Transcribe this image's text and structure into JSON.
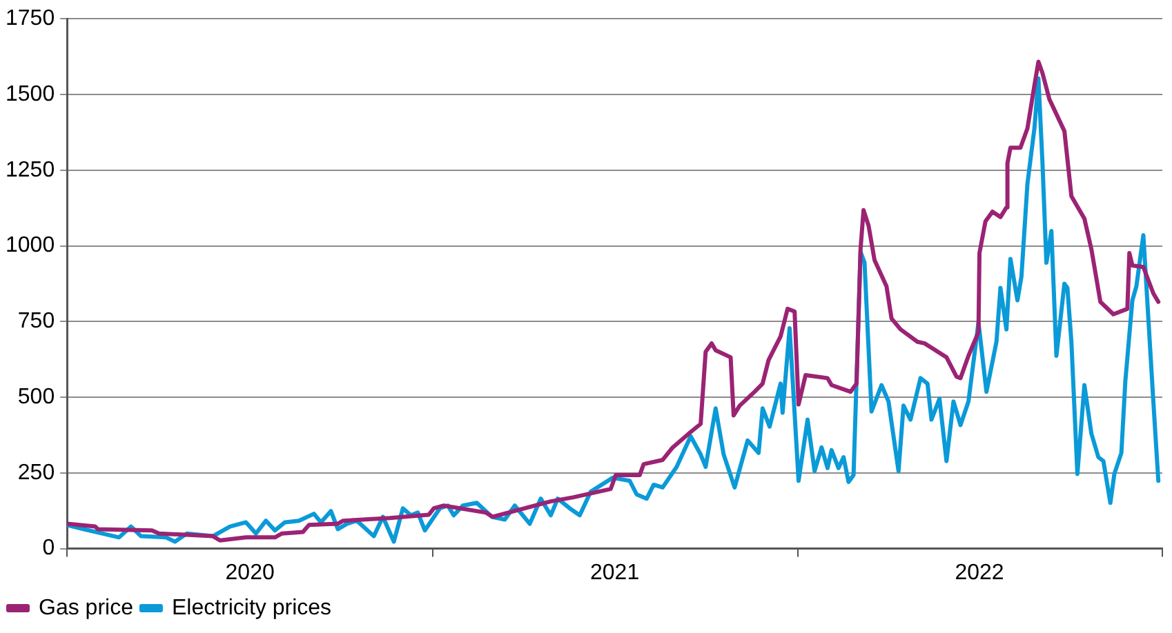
{
  "chart_data": {
    "type": "line",
    "xlim": [
      "2020-01-01",
      "2023-01-01"
    ],
    "xticks": [
      {
        "value": "2020-01-01",
        "label": null
      },
      {
        "value": "2020-07-02",
        "label": "2020"
      },
      {
        "value": "2021-01-01",
        "label": null
      },
      {
        "value": "2021-07-02",
        "label": "2021"
      },
      {
        "value": "2022-01-01",
        "label": null
      },
      {
        "value": "2022-07-02",
        "label": "2022"
      },
      {
        "value": "2023-01-01",
        "label": null
      }
    ],
    "ylim": [
      0,
      1750
    ],
    "yticks": [
      0,
      250,
      500,
      750,
      1000,
      1250,
      1500,
      1750
    ],
    "grid": "y",
    "legend": "bottom left",
    "marker": "none",
    "line_style": "solid",
    "series": [
      {
        "name": "Gas price",
        "color": "#9b2374",
        "x": [
          "2020-01-01",
          "2020-01-29",
          "2020-02-01",
          "2020-03-26",
          "2020-04-02",
          "2020-05-26",
          "2020-06-02",
          "2020-06-28",
          "2020-07-27",
          "2020-08-03",
          "2020-08-24",
          "2020-08-30",
          "2020-09-28",
          "2020-10-03",
          "2020-11-19",
          "2020-12-28",
          "2021-01-02",
          "2021-01-12",
          "2021-02-23",
          "2021-03-02",
          "2021-03-28",
          "2021-04-29",
          "2021-05-21",
          "2021-06-28",
          "2021-07-03",
          "2021-07-27",
          "2021-07-31",
          "2021-08-19",
          "2021-08-29",
          "2021-09-16",
          "2021-09-26",
          "2021-10-01",
          "2021-10-07",
          "2021-10-11",
          "2021-10-26",
          "2021-10-29",
          "2021-11-04",
          "2021-11-19",
          "2021-11-27",
          "2021-12-03",
          "2021-12-15",
          "2021-12-22",
          "2021-12-29",
          "2022-01-02",
          "2022-01-09",
          "2022-01-31",
          "2022-02-04",
          "2022-02-23",
          "2022-03-01",
          "2022-03-05",
          "2022-03-08",
          "2022-03-13",
          "2022-03-19",
          "2022-03-31",
          "2022-04-05",
          "2022-04-14",
          "2022-05-01",
          "2022-05-08",
          "2022-05-30",
          "2022-06-09",
          "2022-06-13",
          "2022-06-21",
          "2022-07-01",
          "2022-07-02",
          "2022-07-08",
          "2022-07-15",
          "2022-07-23",
          "2022-07-29",
          "2022-07-30",
          "2022-08-02",
          "2022-08-12",
          "2022-08-19",
          "2022-08-26",
          "2022-08-30",
          "2022-09-03",
          "2022-09-10",
          "2022-09-25",
          "2022-10-02",
          "2022-10-15",
          "2022-10-22",
          "2022-10-31",
          "2022-11-13",
          "2022-11-27",
          "2022-11-29",
          "2022-12-02",
          "2022-12-13",
          "2022-12-23",
          "2022-12-28"
        ],
        "values": [
          82,
          73,
          64,
          60,
          50,
          41,
          27,
          37,
          37,
          50,
          55,
          78,
          82,
          92,
          101,
          112,
          133,
          142,
          119,
          105,
          128,
          156,
          169,
          197,
          243,
          243,
          279,
          293,
          334,
          385,
          412,
          650,
          678,
          655,
          632,
          440,
          472,
          518,
          545,
          623,
          701,
          792,
          783,
          476,
          573,
          563,
          540,
          518,
          545,
          989,
          1118,
          1067,
          953,
          866,
          760,
          724,
          683,
          678,
          632,
          568,
          563,
          637,
          715,
          976,
          1081,
          1113,
          1095,
          1127,
          1273,
          1324,
          1324,
          1388,
          1530,
          1608,
          1571,
          1484,
          1379,
          1164,
          1090,
          989,
          815,
          774,
          792,
          976,
          935,
          930,
          843,
          815
        ]
      },
      {
        "name": "Electricity prices",
        "color": "#0b9ad8",
        "x": [
          "2020-01-01",
          "2020-01-18",
          "2020-02-05",
          "2020-02-22",
          "2020-03-05",
          "2020-03-15",
          "2020-04-09",
          "2020-04-18",
          "2020-04-30",
          "2020-05-26",
          "2020-06-12",
          "2020-06-28",
          "2020-07-08",
          "2020-07-18",
          "2020-07-27",
          "2020-08-06",
          "2020-08-20",
          "2020-09-04",
          "2020-09-11",
          "2020-09-21",
          "2020-09-28",
          "2020-10-07",
          "2020-10-17",
          "2020-11-03",
          "2020-11-12",
          "2020-11-23",
          "2020-12-02",
          "2020-12-10",
          "2020-12-17",
          "2020-12-24",
          "2021-01-08",
          "2021-01-16",
          "2021-01-22",
          "2021-01-31",
          "2021-02-14",
          "2021-03-01",
          "2021-03-14",
          "2021-03-24",
          "2021-04-08",
          "2021-04-19",
          "2021-04-29",
          "2021-05-06",
          "2021-05-18",
          "2021-05-28",
          "2021-06-08",
          "2021-06-30",
          "2021-07-17",
          "2021-07-24",
          "2021-08-03",
          "2021-08-10",
          "2021-08-19",
          "2021-09-02",
          "2021-09-16",
          "2021-09-26",
          "2021-10-01",
          "2021-10-11",
          "2021-10-19",
          "2021-10-30",
          "2021-11-12",
          "2021-11-23",
          "2021-11-27",
          "2021-12-04",
          "2021-12-15",
          "2021-12-17",
          "2021-12-24",
          "2022-01-02",
          "2022-01-11",
          "2022-01-18",
          "2022-01-25",
          "2022-01-31",
          "2022-02-04",
          "2022-02-11",
          "2022-02-16",
          "2022-02-21",
          "2022-02-26",
          "2022-03-05",
          "2022-03-09",
          "2022-03-16",
          "2022-03-26",
          "2022-04-02",
          "2022-04-12",
          "2022-04-17",
          "2022-04-24",
          "2022-05-04",
          "2022-05-11",
          "2022-05-15",
          "2022-05-23",
          "2022-05-30",
          "2022-06-06",
          "2022-06-13",
          "2022-06-21",
          "2022-07-01",
          "2022-07-09",
          "2022-07-19",
          "2022-07-23",
          "2022-07-29",
          "2022-08-02",
          "2022-08-09",
          "2022-08-13",
          "2022-08-19",
          "2022-08-26",
          "2022-08-30",
          "2022-09-03",
          "2022-09-07",
          "2022-09-12",
          "2022-09-17",
          "2022-09-25",
          "2022-09-28",
          "2022-10-02",
          "2022-10-08",
          "2022-10-15",
          "2022-10-22",
          "2022-10-29",
          "2022-11-03",
          "2022-11-10",
          "2022-11-14",
          "2022-11-21",
          "2022-11-25",
          "2022-12-02",
          "2022-12-06",
          "2022-12-13",
          "2022-12-23",
          "2022-12-28"
        ],
        "values": [
          78,
          64,
          50,
          37,
          73,
          41,
          37,
          23,
          50,
          41,
          73,
          87,
          50,
          92,
          60,
          87,
          92,
          115,
          87,
          124,
          64,
          82,
          92,
          41,
          105,
          23,
          133,
          110,
          119,
          60,
          133,
          142,
          110,
          142,
          151,
          105,
          96,
          142,
          82,
          165,
          110,
          165,
          133,
          110,
          188,
          234,
          224,
          179,
          165,
          211,
          202,
          270,
          371,
          311,
          270,
          463,
          311,
          202,
          357,
          316,
          463,
          403,
          545,
          449,
          728,
          224,
          426,
          256,
          334,
          266,
          325,
          266,
          302,
          220,
          243,
          980,
          944,
          453,
          540,
          486,
          256,
          472,
          426,
          563,
          545,
          426,
          495,
          289,
          486,
          408,
          486,
          747,
          518,
          683,
          861,
          724,
          957,
          820,
          898,
          1205,
          1388,
          1553,
          1278,
          944,
          1049,
          637,
          875,
          861,
          683,
          247,
          540,
          380,
          302,
          289,
          151,
          247,
          316,
          554,
          820,
          866,
          1035,
          486,
          224
        ]
      }
    ]
  }
}
